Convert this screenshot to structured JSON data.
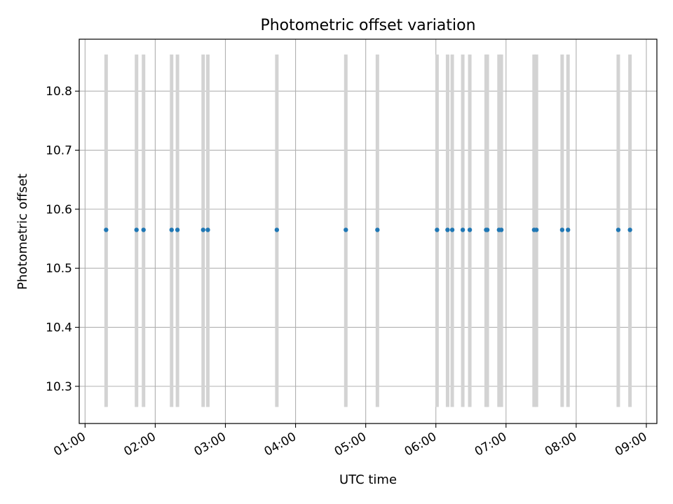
{
  "chart_data": {
    "type": "scatter",
    "title": "Photometric offset variation",
    "xlabel": "UTC time",
    "ylabel": "Photometric offset",
    "x_ticks": [
      "01:00",
      "02:00",
      "03:00",
      "04:00",
      "05:00",
      "06:00",
      "07:00",
      "08:00",
      "09:00"
    ],
    "y_ticks": [
      "10.3",
      "10.4",
      "10.5",
      "10.6",
      "10.7",
      "10.8"
    ],
    "xlim": [
      "00:55",
      "09:09"
    ],
    "ylim": [
      10.237,
      10.888
    ],
    "grid": true,
    "colors": {
      "points": "#1f77b4",
      "bars": "#d3d3d3",
      "grid": "#b0b0b0"
    },
    "error_bar_range": [
      10.265,
      10.862
    ],
    "points": [
      {
        "x": "01:18",
        "y": 10.565
      },
      {
        "x": "01:44",
        "y": 10.565
      },
      {
        "x": "01:50",
        "y": 10.565
      },
      {
        "x": "02:14",
        "y": 10.565
      },
      {
        "x": "02:19",
        "y": 10.565
      },
      {
        "x": "02:41",
        "y": 10.565
      },
      {
        "x": "02:45",
        "y": 10.565
      },
      {
        "x": "03:44",
        "y": 10.565
      },
      {
        "x": "04:43",
        "y": 10.565
      },
      {
        "x": "05:10",
        "y": 10.565
      },
      {
        "x": "06:01",
        "y": 10.565
      },
      {
        "x": "06:10",
        "y": 10.565
      },
      {
        "x": "06:14",
        "y": 10.565
      },
      {
        "x": "06:23",
        "y": 10.565
      },
      {
        "x": "06:29",
        "y": 10.565
      },
      {
        "x": "06:43",
        "y": 10.565
      },
      {
        "x": "06:44",
        "y": 10.565
      },
      {
        "x": "06:54",
        "y": 10.565
      },
      {
        "x": "06:56",
        "y": 10.565
      },
      {
        "x": "07:24",
        "y": 10.565
      },
      {
        "x": "07:26",
        "y": 10.565
      },
      {
        "x": "07:48",
        "y": 10.565
      },
      {
        "x": "07:53",
        "y": 10.565
      },
      {
        "x": "08:36",
        "y": 10.565
      },
      {
        "x": "08:46",
        "y": 10.565
      }
    ]
  }
}
